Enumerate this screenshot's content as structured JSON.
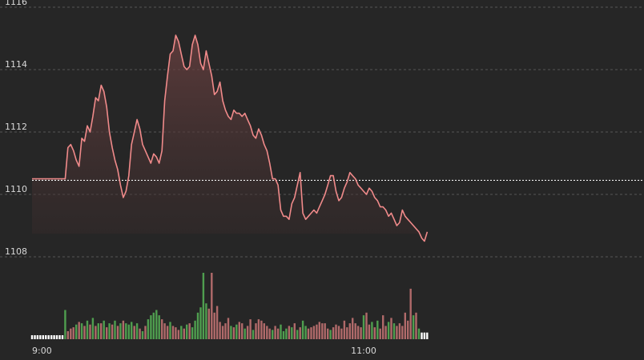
{
  "chart_data": {
    "type": "line",
    "title": "",
    "xlabel": "",
    "ylabel": "",
    "ylim": [
      1108,
      1116
    ],
    "yticks": [
      1108,
      1110,
      1112,
      1114,
      1116
    ],
    "y_tick_labels": [
      "1108",
      "1110",
      "1112",
      "1114",
      "1116"
    ],
    "x_tick_labels": [
      "9:00",
      "11:00"
    ],
    "session": {
      "start": "9:00",
      "end": "11:30",
      "minutes": 150,
      "tick_minutes": [
        0,
        120
      ]
    },
    "reference_price": 1110.45,
    "grid": true,
    "colors": {
      "line": "#f08a8a",
      "up_volume": "#4f9e4f",
      "down_volume": "#b06a6a",
      "grid": "#555555",
      "reference_line": "#f0f0f0"
    },
    "series": [
      {
        "minutes": [
          0,
          12,
          13,
          14,
          15,
          16,
          17,
          18,
          19,
          20,
          21,
          22,
          23,
          24,
          25,
          26,
          27,
          28,
          29,
          30,
          31,
          32,
          33,
          34,
          35,
          36,
          37,
          38,
          39,
          40,
          41,
          42,
          43,
          44,
          45,
          46,
          47,
          48,
          49,
          50,
          51,
          52,
          53,
          54,
          55,
          56,
          57,
          58,
          59,
          60,
          61,
          62,
          63,
          64,
          65,
          66,
          67,
          68,
          69,
          70,
          71,
          72,
          73,
          74,
          75,
          76,
          77,
          78,
          79,
          80,
          81,
          82,
          83,
          84,
          85,
          86,
          87,
          88,
          89,
          90,
          91,
          92,
          93,
          94,
          95,
          96,
          97,
          98,
          99,
          100,
          101,
          102,
          103,
          104,
          105,
          106,
          107,
          108,
          109,
          110,
          111,
          112,
          113,
          114,
          115,
          116,
          117,
          118,
          119,
          120,
          121,
          122,
          123,
          124,
          125,
          126,
          127,
          128,
          129,
          130,
          131,
          132,
          133,
          134,
          135,
          136,
          137,
          138,
          139,
          140,
          141,
          142,
          143
        ],
        "values": [
          1110.5,
          1110.5,
          1111.5,
          1111.6,
          1111.4,
          1111.1,
          1110.9,
          1111.8,
          1111.7,
          1112.2,
          1112.0,
          1112.5,
          1113.1,
          1113.0,
          1113.5,
          1113.3,
          1112.8,
          1112.0,
          1111.5,
          1111.1,
          1110.8,
          1110.3,
          1109.9,
          1110.1,
          1110.6,
          1111.6,
          1112.0,
          1112.4,
          1112.1,
          1111.6,
          1111.4,
          1111.2,
          1111.0,
          1111.3,
          1111.2,
          1111.0,
          1111.4,
          1113.0,
          1113.8,
          1114.5,
          1114.6,
          1115.1,
          1114.9,
          1114.5,
          1114.1,
          1114.0,
          1114.1,
          1114.8,
          1115.1,
          1114.8,
          1114.2,
          1114.0,
          1114.6,
          1114.2,
          1113.8,
          1113.2,
          1113.3,
          1113.6,
          1113.0,
          1112.7,
          1112.5,
          1112.4,
          1112.7,
          1112.6,
          1112.6,
          1112.5,
          1112.6,
          1112.4,
          1112.2,
          1111.9,
          1111.8,
          1112.1,
          1111.9,
          1111.6,
          1111.4,
          1111.0,
          1110.5,
          1110.5,
          1110.3,
          1109.5,
          1109.3,
          1109.3,
          1109.2,
          1109.7,
          1109.9,
          1110.3,
          1110.7,
          1109.4,
          1109.2,
          1109.3,
          1109.4,
          1109.5,
          1109.4,
          1109.6,
          1109.8,
          1110.0,
          1110.3,
          1110.6,
          1110.6,
          1110.1,
          1109.8,
          1109.9,
          1110.2,
          1110.4,
          1110.7,
          1110.6,
          1110.5,
          1110.3,
          1110.2,
          1110.1,
          1110.0,
          1110.2,
          1110.1,
          1109.9,
          1109.8,
          1109.6,
          1109.6,
          1109.5,
          1109.3,
          1109.4,
          1109.2,
          1109.0,
          1109.1,
          1109.5,
          1109.3,
          1109.2,
          1109.1,
          1109.0,
          1108.9,
          1108.8,
          1108.6,
          1108.5,
          1108.8,
          1109.0,
          1109.3,
          1109.4,
          1109.3,
          1109.5,
          1109.3,
          1109.1,
          1109.0,
          1109.3,
          1109.3
        ]
      }
    ],
    "volume": {
      "minutes": [
        0,
        1,
        2,
        3,
        4,
        5,
        6,
        7,
        8,
        9,
        10,
        11,
        12,
        13,
        14,
        15,
        16,
        17,
        18,
        19,
        20,
        21,
        22,
        23,
        24,
        25,
        26,
        27,
        28,
        29,
        30,
        31,
        32,
        33,
        34,
        35,
        36,
        37,
        38,
        39,
        40,
        41,
        42,
        43,
        44,
        45,
        46,
        47,
        48,
        49,
        50,
        51,
        52,
        53,
        54,
        55,
        56,
        57,
        58,
        59,
        60,
        61,
        62,
        63,
        64,
        65,
        66,
        67,
        68,
        69,
        70,
        71,
        72,
        73,
        74,
        75,
        76,
        77,
        78,
        79,
        80,
        81,
        82,
        83,
        84,
        85,
        86,
        87,
        88,
        89,
        90,
        91,
        92,
        93,
        94,
        95,
        96,
        97,
        98,
        99,
        100,
        101,
        102,
        103,
        104,
        105,
        106,
        107,
        108,
        109,
        110,
        111,
        112,
        113,
        114,
        115,
        116,
        117,
        118,
        119,
        120,
        121,
        122,
        123,
        124,
        125,
        126,
        127,
        128,
        129,
        130,
        131,
        132,
        133,
        134,
        135,
        136,
        137,
        138,
        139,
        140,
        141,
        142,
        143
      ],
      "values": [
        3,
        3,
        3,
        3,
        3,
        3,
        3,
        3,
        3,
        3,
        3,
        3,
        22,
        6,
        8,
        9,
        11,
        13,
        12,
        10,
        14,
        11,
        16,
        10,
        12,
        12,
        14,
        9,
        12,
        11,
        14,
        10,
        12,
        14,
        12,
        11,
        13,
        10,
        12,
        8,
        6,
        10,
        15,
        18,
        20,
        22,
        18,
        15,
        12,
        10,
        13,
        10,
        9,
        7,
        10,
        8,
        11,
        12,
        9,
        14,
        20,
        24,
        50,
        27,
        23,
        50,
        20,
        25,
        13,
        10,
        12,
        16,
        10,
        9,
        11,
        13,
        12,
        8,
        10,
        15,
        7,
        12,
        15,
        14,
        12,
        10,
        8,
        7,
        10,
        8,
        11,
        6,
        8,
        10,
        9,
        12,
        7,
        9,
        14,
        10,
        8,
        9,
        10,
        11,
        13,
        12,
        12,
        8,
        7,
        9,
        11,
        10,
        8,
        14,
        9,
        12,
        16,
        12,
        10,
        9,
        18,
        20,
        11,
        13,
        9,
        14,
        8,
        18,
        10,
        13,
        16,
        12,
        10,
        12,
        10,
        20,
        14,
        38,
        18,
        20,
        8,
        5,
        5,
        5
      ],
      "direction": [
        "n",
        "n",
        "n",
        "n",
        "n",
        "n",
        "n",
        "n",
        "n",
        "n",
        "n",
        "n",
        "u",
        "d",
        "d",
        "d",
        "u",
        "d",
        "u",
        "d",
        "u",
        "d",
        "u",
        "d",
        "u",
        "d",
        "u",
        "d",
        "u",
        "d",
        "u",
        "d",
        "u",
        "d",
        "u",
        "u",
        "u",
        "d",
        "u",
        "d",
        "u",
        "d",
        "u",
        "u",
        "u",
        "u",
        "u",
        "d",
        "d",
        "d",
        "u",
        "d",
        "d",
        "d",
        "u",
        "d",
        "u",
        "d",
        "u",
        "u",
        "u",
        "u",
        "u",
        "u",
        "d",
        "d",
        "d",
        "d",
        "d",
        "d",
        "d",
        "d",
        "u",
        "d",
        "u",
        "d",
        "d",
        "u",
        "d",
        "d",
        "u",
        "d",
        "d",
        "d",
        "d",
        "d",
        "d",
        "u",
        "d",
        "d",
        "u",
        "u",
        "u",
        "d",
        "u",
        "d",
        "u",
        "d",
        "u",
        "u",
        "d",
        "d",
        "d",
        "d",
        "d",
        "d",
        "d",
        "d",
        "u",
        "d",
        "d",
        "d",
        "d",
        "d",
        "d",
        "d",
        "d",
        "d",
        "d",
        "d",
        "u",
        "d",
        "d",
        "u",
        "d",
        "u",
        "d",
        "d",
        "d",
        "u",
        "d",
        "u",
        "d",
        "d",
        "d",
        "d",
        "d",
        "d",
        "u",
        "d",
        "u",
        "n",
        "n",
        "n"
      ]
    }
  }
}
